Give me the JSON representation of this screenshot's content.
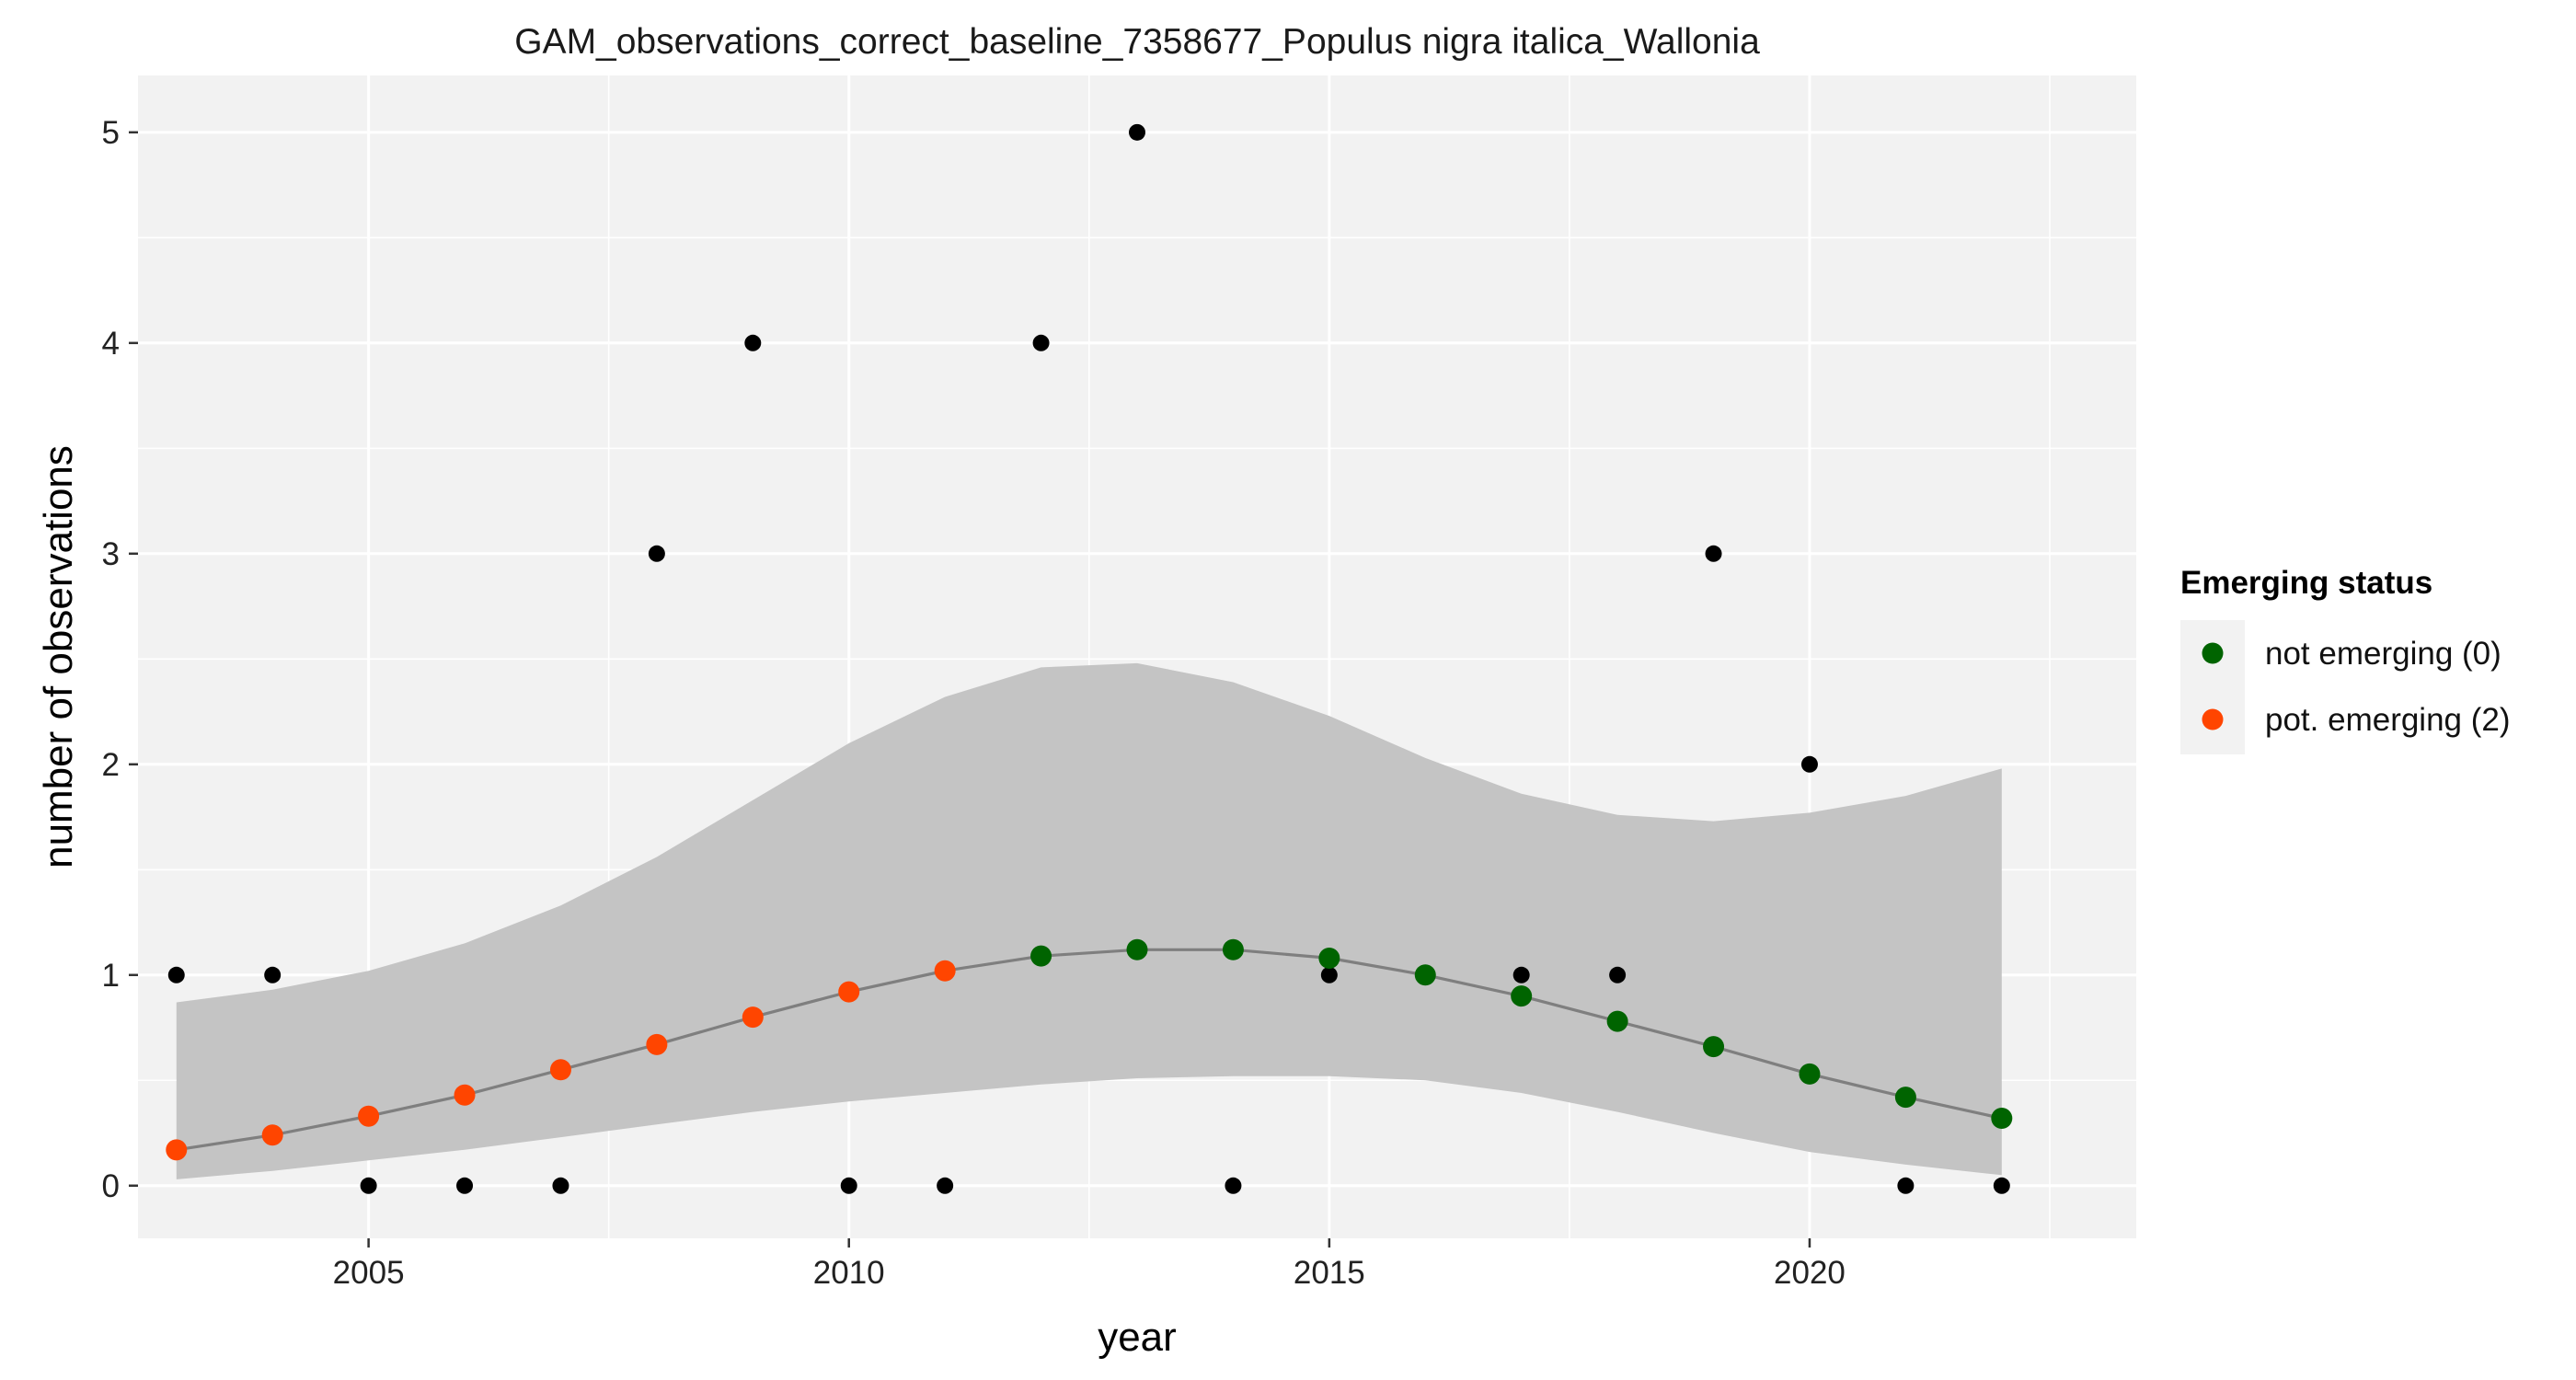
{
  "chart_data": {
    "type": "scatter",
    "title": "GAM_observations_correct_baseline_7358677_Populus nigra italica_Wallonia",
    "xlabel": "year",
    "ylabel": "number of observations",
    "xlim": [
      2002.6,
      2023.4
    ],
    "ylim": [
      -0.25,
      5.27
    ],
    "x_ticks": [
      2005,
      2010,
      2015,
      2020
    ],
    "x_tick_labels": [
      "2005",
      "2010",
      "2015",
      "2020"
    ],
    "x_minor_ticks": [
      2002.5,
      2007.5,
      2012.5,
      2017.5,
      2022.5
    ],
    "y_ticks": [
      0,
      1,
      2,
      3,
      4,
      5
    ],
    "y_tick_labels": [
      "0",
      "1",
      "2",
      "3",
      "4",
      "5"
    ],
    "y_minor_ticks": [
      0.5,
      1.5,
      2.5,
      3.5,
      4.5
    ],
    "grid": true,
    "legend_placement": "right",
    "colors": {
      "panel_bg": "#f2f2f2",
      "grid": "#ffffff",
      "band": "#c4c4c4",
      "line": "#7f7f7f",
      "observed": "#000000",
      "not_emerging": "#006400",
      "pot_emerging": "#ff4500"
    },
    "observed": {
      "x": [
        2003,
        2004,
        2005,
        2006,
        2007,
        2008,
        2009,
        2010,
        2011,
        2012,
        2013,
        2014,
        2015,
        2016,
        2017,
        2018,
        2019,
        2020,
        2021,
        2022
      ],
      "y": [
        1,
        1,
        0,
        0,
        0,
        3,
        4,
        0,
        0,
        4,
        5,
        0,
        1,
        1,
        1,
        1,
        3,
        2,
        0,
        0
      ]
    },
    "fit": {
      "x": [
        2003,
        2004,
        2005,
        2006,
        2007,
        2008,
        2009,
        2010,
        2011,
        2012,
        2013,
        2014,
        2015,
        2016,
        2017,
        2018,
        2019,
        2020,
        2021,
        2022
      ],
      "y": [
        0.17,
        0.24,
        0.33,
        0.43,
        0.55,
        0.67,
        0.8,
        0.92,
        1.02,
        1.09,
        1.12,
        1.12,
        1.08,
        1.0,
        0.9,
        0.78,
        0.66,
        0.53,
        0.42,
        0.32
      ],
      "lower": [
        0.03,
        0.07,
        0.12,
        0.17,
        0.23,
        0.29,
        0.35,
        0.4,
        0.44,
        0.48,
        0.51,
        0.52,
        0.52,
        0.5,
        0.44,
        0.35,
        0.25,
        0.16,
        0.1,
        0.05
      ],
      "upper": [
        0.87,
        0.93,
        1.02,
        1.15,
        1.33,
        1.56,
        1.83,
        2.1,
        2.32,
        2.46,
        2.48,
        2.39,
        2.23,
        2.03,
        1.86,
        1.76,
        1.73,
        1.77,
        1.85,
        1.98
      ],
      "status": [
        "pot",
        "pot",
        "pot",
        "pot",
        "pot",
        "pot",
        "pot",
        "pot",
        "pot",
        "not",
        "not",
        "not",
        "not",
        "not",
        "not",
        "not",
        "not",
        "not",
        "not",
        "not"
      ]
    },
    "legend": {
      "title": "Emerging status",
      "items": [
        {
          "key": "not",
          "label": "not emerging (0)",
          "color": "#006400"
        },
        {
          "key": "pot",
          "label": "pot. emerging (2)",
          "color": "#ff4500"
        }
      ]
    }
  }
}
